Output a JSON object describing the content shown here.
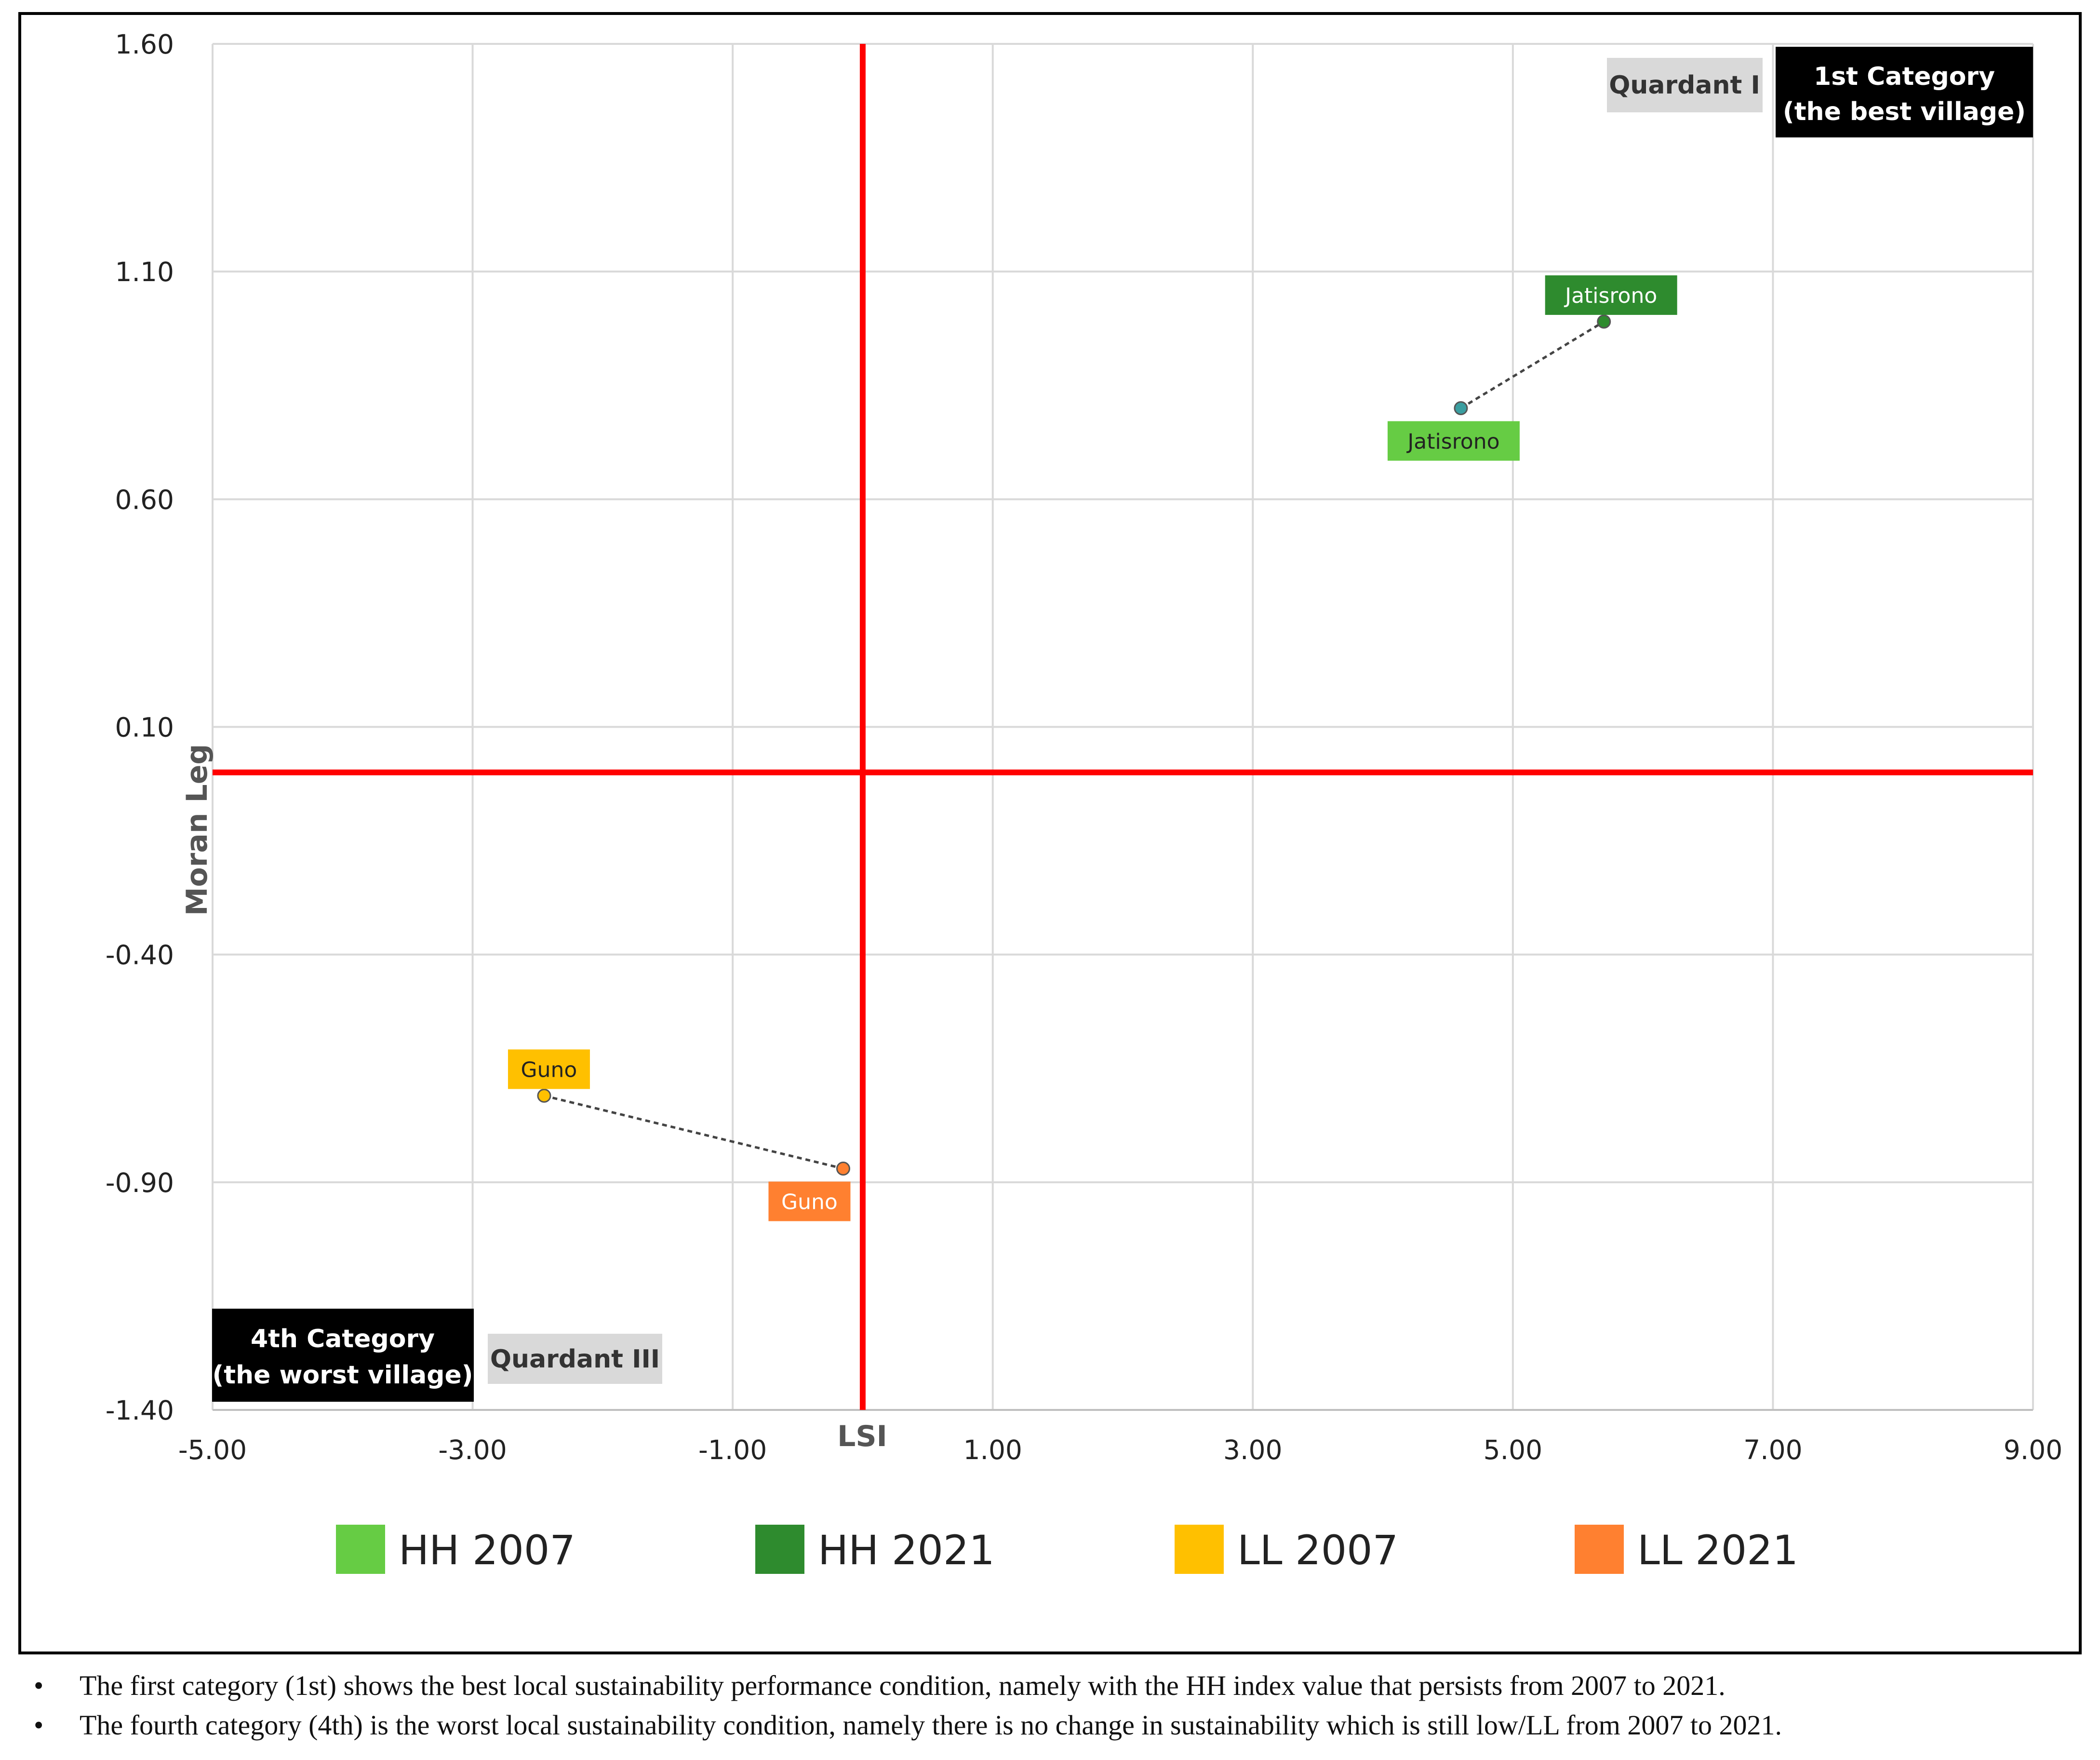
{
  "chart_data": {
    "type": "scatter",
    "title": "",
    "xlabel": "LSI",
    "ylabel": "Moran Leg",
    "xlim": [
      -5.0,
      9.0
    ],
    "ylim": [
      -1.4,
      1.6
    ],
    "xticks": [
      "-5.00",
      "-3.00",
      "-1.00",
      "1.00",
      "3.00",
      "5.00",
      "7.00",
      "9.00"
    ],
    "yticks": [
      "1.60",
      "1.10",
      "0.60",
      "0.10",
      "-0.40",
      "-0.90",
      "-1.40"
    ],
    "quadrant_lines": {
      "x": 0.0,
      "y": 0.0
    },
    "series": [
      {
        "name": "HH 2007",
        "color": "#66CC44",
        "points": [
          {
            "x": 4.6,
            "y": 0.8,
            "label": "Jatisrono"
          }
        ]
      },
      {
        "name": "HH 2021",
        "color": "#2E8B2E",
        "points": [
          {
            "x": 5.7,
            "y": 0.99,
            "label": "Jatisrono"
          }
        ]
      },
      {
        "name": "LL 2007",
        "color": "#FFC000",
        "points": [
          {
            "x": -2.45,
            "y": -0.71,
            "label": "Guno"
          }
        ]
      },
      {
        "name": "LL 2021",
        "color": "#FF8030",
        "points": [
          {
            "x": -0.15,
            "y": -0.87,
            "label": "Guno"
          }
        ]
      }
    ],
    "connectors": [
      {
        "from": "HH 2007",
        "to": "HH 2021"
      },
      {
        "from": "LL 2007",
        "to": "LL 2021"
      }
    ],
    "annotations": {
      "quadrant_1": "Quardant I",
      "category_1_line1": "1st Category",
      "category_1_line2": "(the best village)",
      "quadrant_3": "Quardant III",
      "category_4_line1": "4th Category",
      "category_4_line2": "(the worst village)"
    }
  },
  "notes": [
    "The first category (1st) shows the best local sustainability performance condition, namely with the HH index value that persists from 2007 to 2021.",
    "The fourth category (4th) is the worst local sustainability condition, namely there is no change in sustainability which is still low/LL from 2007 to 2021."
  ]
}
